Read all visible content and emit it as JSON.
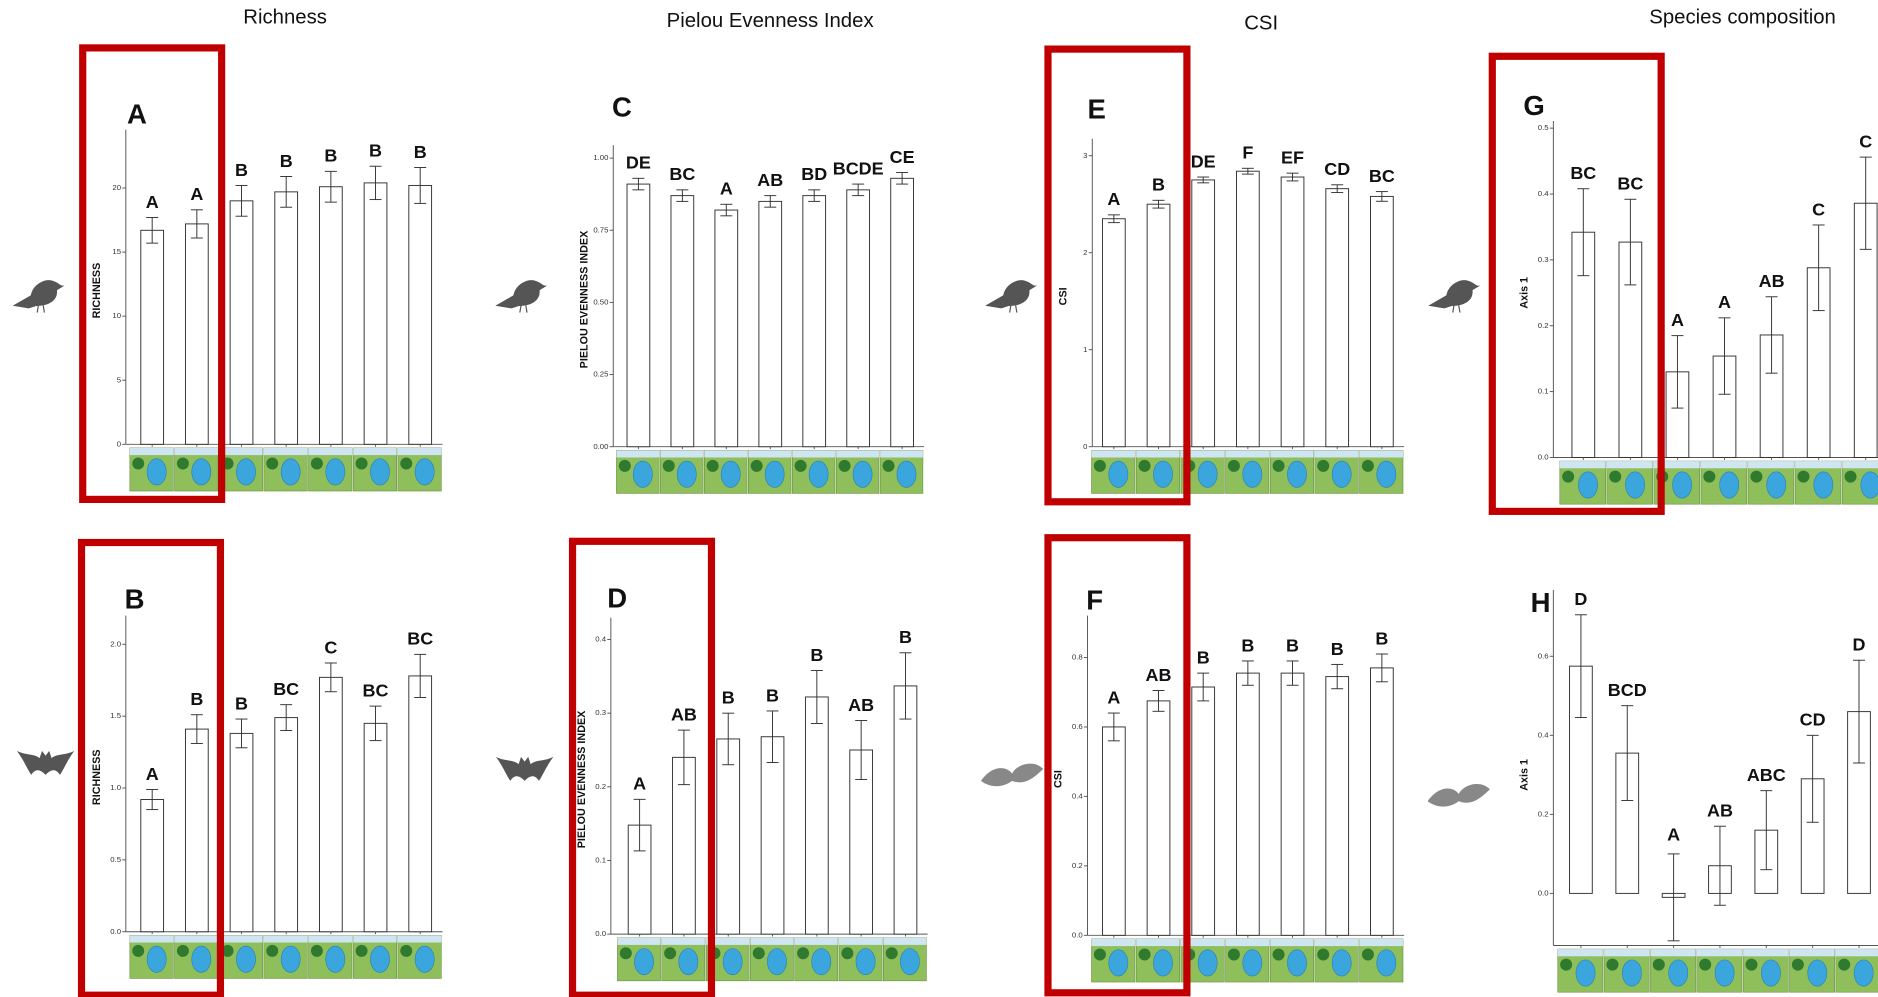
{
  "column_titles": [
    "Richness",
    "Pielou Evenness Index",
    "CSI",
    "Species composition"
  ],
  "chart_data": [
    {
      "type": "bar",
      "panel_label": "A",
      "ylabel": "RICHNESS",
      "ylim": [
        0,
        24
      ],
      "yticks": [
        0,
        5,
        10,
        15,
        20
      ],
      "values": [
        16.7,
        17.2,
        19.0,
        19.7,
        20.1,
        20.4,
        20.2
      ],
      "errors": [
        1.0,
        1.1,
        1.2,
        1.2,
        1.2,
        1.3,
        1.4
      ],
      "annotations": [
        "A",
        "A",
        "B",
        "B",
        "B",
        "B",
        "B"
      ]
    },
    {
      "type": "bar",
      "panel_label": "B",
      "ylabel": "RICHNESS",
      "ylim": [
        0,
        2.15
      ],
      "yticks": [
        {
          "value": 0,
          "label": "0.0"
        },
        0.5,
        {
          "value": 1,
          "label": "1.0"
        },
        1.5,
        {
          "value": 2,
          "label": "2.0"
        }
      ],
      "values": [
        0.92,
        1.41,
        1.38,
        1.49,
        1.77,
        1.45,
        1.78
      ],
      "errors": [
        0.07,
        0.1,
        0.1,
        0.09,
        0.1,
        0.12,
        0.15
      ],
      "annotations": [
        "A",
        "B",
        "B",
        "BC",
        "C",
        "BC",
        "BC"
      ]
    },
    {
      "type": "bar",
      "panel_label": "C",
      "ylabel": "PIELOU EVENNESS INDEX",
      "ylim": [
        0,
        1.02
      ],
      "yticks": [
        {
          "value": 0,
          "label": "0.00"
        },
        0.25,
        {
          "value": 0.5,
          "label": "0.50"
        },
        0.75,
        {
          "value": 1,
          "label": "1.00"
        }
      ],
      "values": [
        0.91,
        0.87,
        0.82,
        0.85,
        0.87,
        0.89,
        0.93
      ],
      "errors": [
        0.02,
        0.02,
        0.02,
        0.02,
        0.02,
        0.02,
        0.02
      ],
      "annotations": [
        "DE",
        "BC",
        "A",
        "AB",
        "BD",
        "BCDE",
        "CE"
      ]
    },
    {
      "type": "bar",
      "panel_label": "D",
      "ylabel": "PIELOU EVENNESS INDEX",
      "ylim": [
        0,
        0.42
      ],
      "yticks": [
        {
          "value": 0,
          "label": "0.0"
        },
        0.1,
        0.2,
        0.3,
        0.4
      ],
      "values": [
        0.148,
        0.24,
        0.265,
        0.268,
        0.322,
        0.25,
        0.337
      ],
      "errors": [
        0.035,
        0.037,
        0.035,
        0.035,
        0.036,
        0.04,
        0.045
      ],
      "annotations": [
        "A",
        "AB",
        "B",
        "B",
        "B",
        "AB",
        "B"
      ]
    },
    {
      "type": "bar",
      "panel_label": "E",
      "ylabel": "CSI",
      "ylim": [
        0,
        3.1
      ],
      "yticks": [
        0,
        1,
        2,
        3
      ],
      "values": [
        2.35,
        2.5,
        2.75,
        2.84,
        2.78,
        2.66,
        2.58
      ],
      "errors": [
        0.04,
        0.04,
        0.03,
        0.03,
        0.04,
        0.04,
        0.05
      ],
      "annotations": [
        "A",
        "B",
        "DE",
        "F",
        "EF",
        "CD",
        "BC"
      ]
    },
    {
      "type": "bar",
      "panel_label": "F",
      "ylabel": "CSI",
      "ylim": [
        0,
        0.9
      ],
      "yticks": [
        {
          "value": 0,
          "label": "0.0"
        },
        0.2,
        0.4,
        0.6,
        0.8
      ],
      "values": [
        0.6,
        0.675,
        0.715,
        0.755,
        0.755,
        0.745,
        0.77
      ],
      "errors": [
        0.04,
        0.03,
        0.04,
        0.035,
        0.035,
        0.035,
        0.04
      ],
      "annotations": [
        "A",
        "AB",
        "B",
        "B",
        "B",
        "B",
        "B"
      ]
    },
    {
      "type": "bar",
      "panel_label": "G",
      "ylabel": "Axis 1",
      "ylim": [
        0,
        0.5
      ],
      "yticks": [
        {
          "value": 0,
          "label": "0.0"
        },
        0.1,
        0.2,
        0.3,
        0.4,
        0.5
      ],
      "values": [
        0.342,
        0.327,
        0.13,
        0.154,
        0.186,
        0.288,
        0.386
      ],
      "errors": [
        0.066,
        0.065,
        0.055,
        0.058,
        0.058,
        0.065,
        0.07
      ],
      "annotations": [
        "BC",
        "BC",
        "A",
        "A",
        "AB",
        "C",
        "C"
      ]
    },
    {
      "type": "bar",
      "panel_label": "H",
      "ylabel": "Axis 1",
      "ylim": [
        -0.15,
        0.75
      ],
      "yticks": [
        {
          "value": 0,
          "label": "0.0"
        },
        0.2,
        0.4,
        0.6
      ],
      "values": [
        0.575,
        0.355,
        -0.01,
        0.07,
        0.16,
        0.29,
        0.46
      ],
      "errors": [
        0.13,
        0.12,
        0.11,
        0.1,
        0.1,
        0.11,
        0.13
      ],
      "annotations": [
        "D",
        "BCD",
        "A",
        "AB",
        "ABC",
        "CD",
        "D"
      ]
    }
  ]
}
